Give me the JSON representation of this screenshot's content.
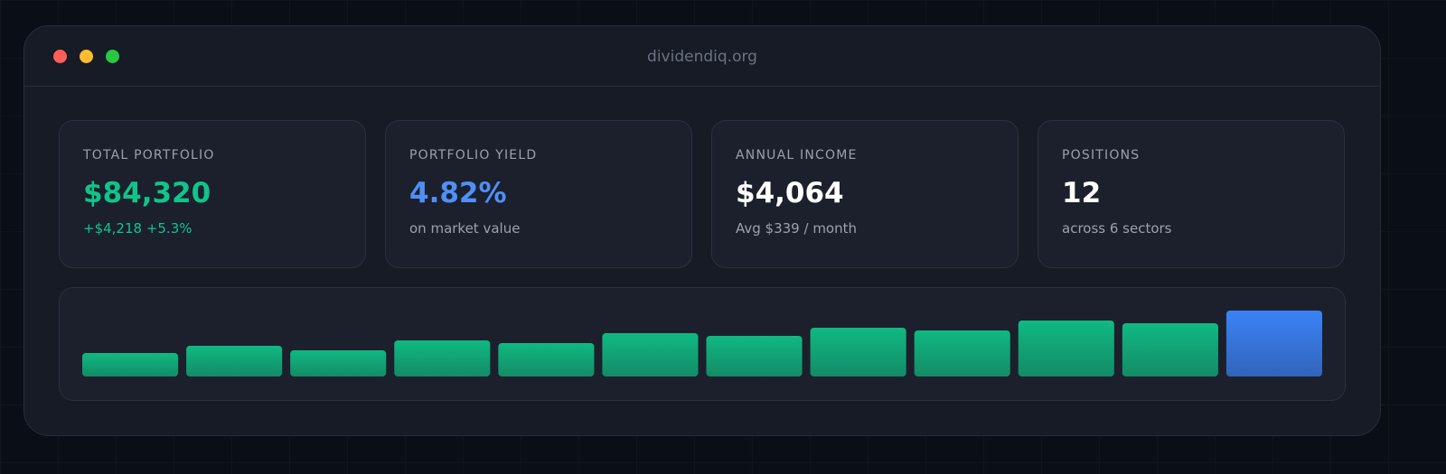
{
  "window": {
    "url": "dividendiq.org"
  },
  "cards": [
    {
      "label": "TOTAL PORTFOLIO",
      "value": "$84,320",
      "sub": "+$4,218 +5.3%"
    },
    {
      "label": "PORTFOLIO YIELD",
      "value": "4.82%",
      "sub": "on market value"
    },
    {
      "label": "ANNUAL INCOME",
      "value": "$4,064",
      "sub": "Avg $339 / month"
    },
    {
      "label": "POSITIONS",
      "value": "12",
      "sub": "across 6 sectors"
    }
  ],
  "chart_data": {
    "type": "bar",
    "values": [
      26,
      34,
      29,
      40,
      37,
      48,
      45,
      54,
      51,
      62,
      59,
      73
    ],
    "colors": [
      "#10b981",
      "#10b981",
      "#10b981",
      "#10b981",
      "#10b981",
      "#10b981",
      "#10b981",
      "#10b981",
      "#10b981",
      "#10b981",
      "#10b981",
      "#3b82f6"
    ]
  }
}
